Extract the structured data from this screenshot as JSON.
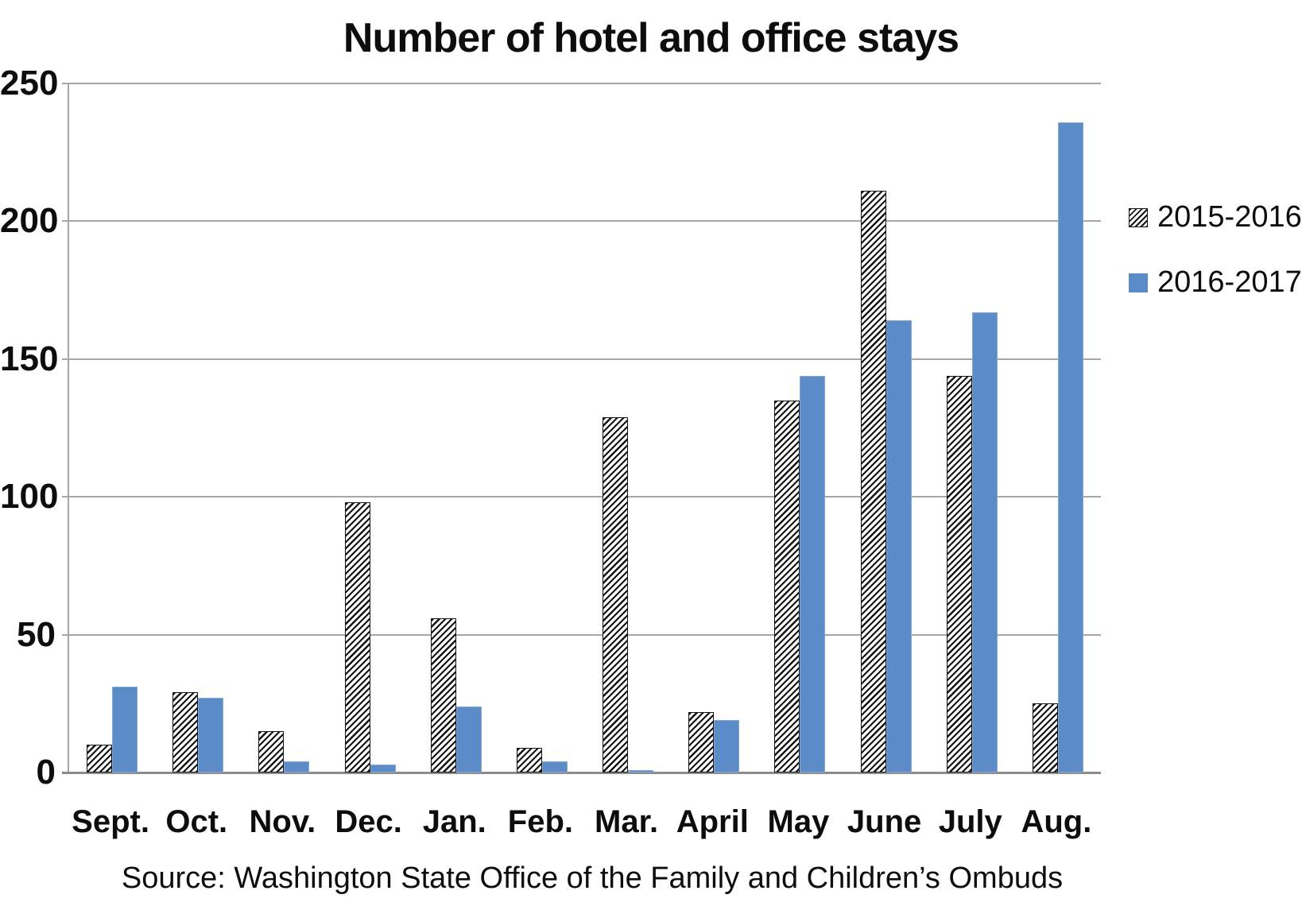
{
  "title": "Number of hotel and office stays",
  "source_note": "Source: Washington State Office of the Family and Children’s Ombuds",
  "colors": {
    "series_2016_2017_blue": "#5b8cc8",
    "gridline_gray": "#a6a6a6",
    "axis_gray": "#8c8c8c",
    "text_black": "#0d0d0d"
  },
  "legend": {
    "items": [
      {
        "label": "2015-2016",
        "style": "hatched"
      },
      {
        "label": "2016-2017",
        "style": "solid"
      }
    ],
    "position": "right"
  },
  "chart_data": {
    "type": "bar",
    "title": "Number of hotel and office stays",
    "categories": [
      "Sept.",
      "Oct.",
      "Nov.",
      "Dec.",
      "Jan.",
      "Feb.",
      "Mar.",
      "April",
      "May",
      "June",
      "July",
      "Aug."
    ],
    "series": [
      {
        "name": "2015-2016",
        "style": "hatched",
        "values": [
          10,
          29,
          15,
          98,
          56,
          9,
          129,
          22,
          135,
          211,
          144,
          25
        ]
      },
      {
        "name": "2016-2017",
        "style": "solid",
        "color": "#5b8cc8",
        "values": [
          31,
          27,
          4,
          3,
          24,
          4,
          1,
          19,
          144,
          164,
          167,
          236
        ]
      }
    ],
    "xlabel": "",
    "ylabel": "",
    "ylim": [
      0,
      250
    ],
    "yticks": [
      0,
      50,
      100,
      150,
      200,
      250
    ],
    "grid": true,
    "legend_position": "right",
    "source_note": "Source: Washington State Office of the Family and Children’s Ombuds"
  }
}
